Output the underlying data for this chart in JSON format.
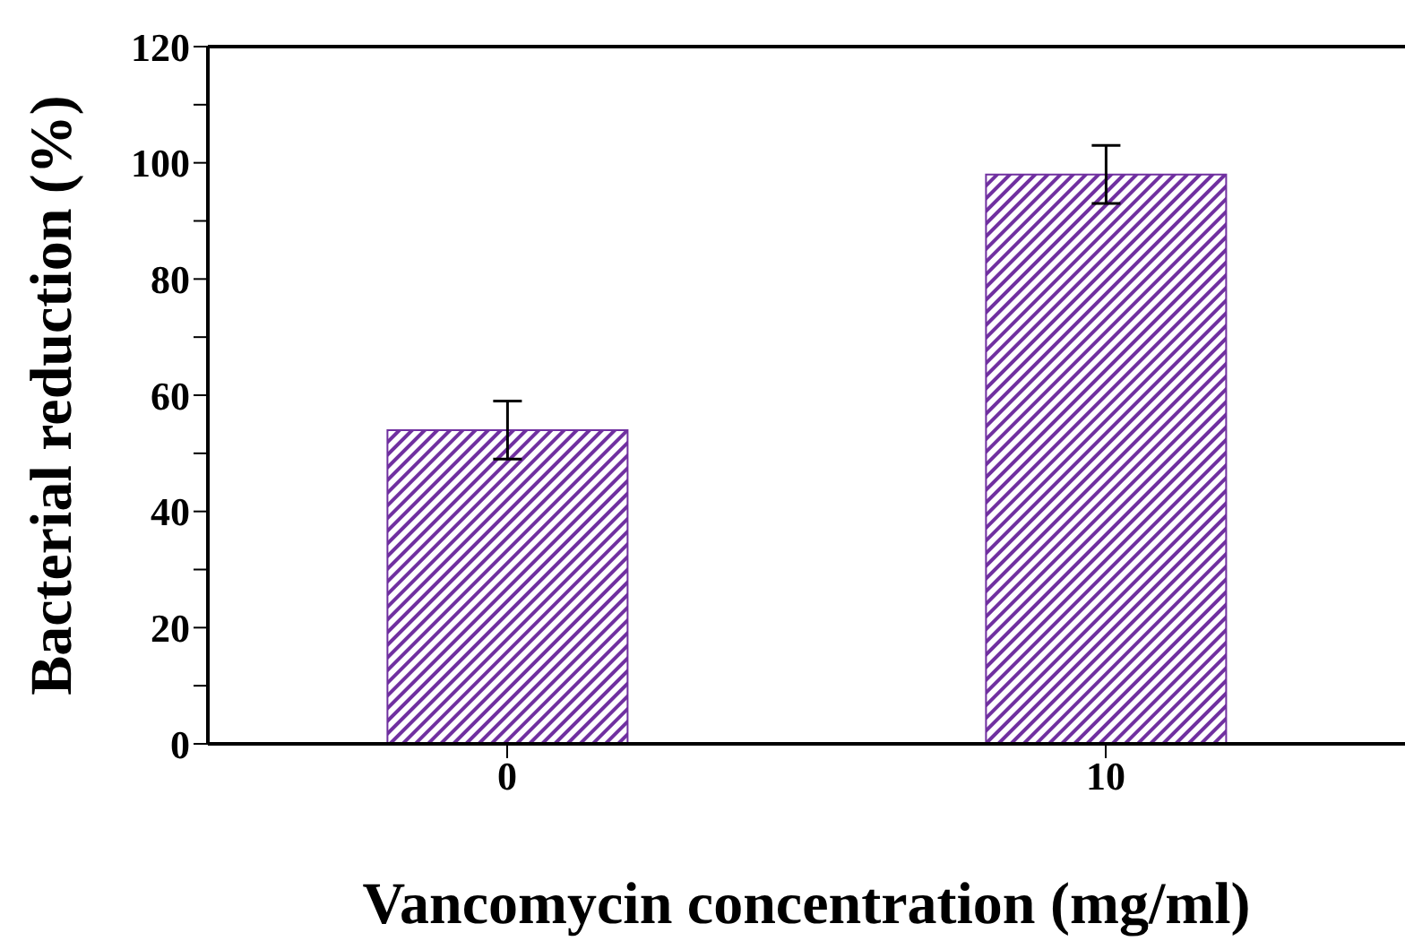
{
  "chart_data": {
    "type": "bar",
    "xlabel": "Vancomycin concentration (mg/ml)",
    "ylabel": "Bacterial reduction (%)",
    "categories": [
      "0",
      "10"
    ],
    "values": [
      54,
      98
    ],
    "errors": [
      5,
      5
    ],
    "color": "#7030a0",
    "ylim": [
      0,
      120
    ],
    "yticks": [
      0,
      {
        "value": 10,
        "label": null
      },
      20,
      {
        "value": 30,
        "label": null
      },
      40,
      {
        "value": 50,
        "label": null
      },
      60,
      {
        "value": 70,
        "label": null
      },
      80,
      {
        "value": 90,
        "label": null
      },
      100,
      {
        "value": 110,
        "label": null
      },
      120
    ],
    "grid": false,
    "legend": false
  }
}
